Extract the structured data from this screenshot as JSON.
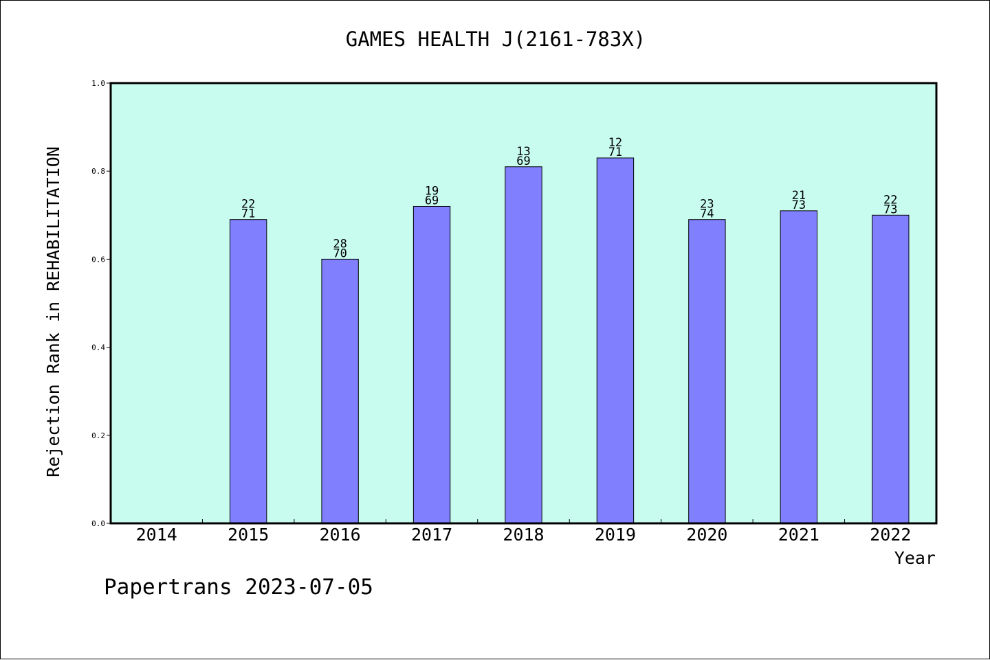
{
  "chart_data": {
    "type": "bar",
    "title": "GAMES HEALTH J(2161-783X)",
    "xlabel": "Year",
    "ylabel": "Rejection Rank in REHABILITATION",
    "ylim": [
      0,
      1.0
    ],
    "yticks": [
      "0.0",
      "0.2",
      "0.4",
      "0.6",
      "0.8",
      "1.0"
    ],
    "grid": false,
    "categories": [
      "2014",
      "2015",
      "2016",
      "2017",
      "2018",
      "2019",
      "2020",
      "2021",
      "2022"
    ],
    "values": [
      null,
      0.69,
      0.6,
      0.72,
      0.81,
      0.83,
      0.69,
      0.71,
      0.7
    ],
    "labels_top": [
      "",
      "22",
      "28",
      "19",
      "13",
      "12",
      "23",
      "21",
      "22"
    ],
    "labels_bottom": [
      "",
      "71",
      "70",
      "69",
      "69",
      "71",
      "74",
      "73",
      "73"
    ],
    "colors": {
      "plot_background": "#c8fcef",
      "bar_fill": "#8080ff",
      "bar_stroke": "#000000"
    }
  },
  "footer": {
    "credit": "Papertrans 2023-07-05"
  }
}
